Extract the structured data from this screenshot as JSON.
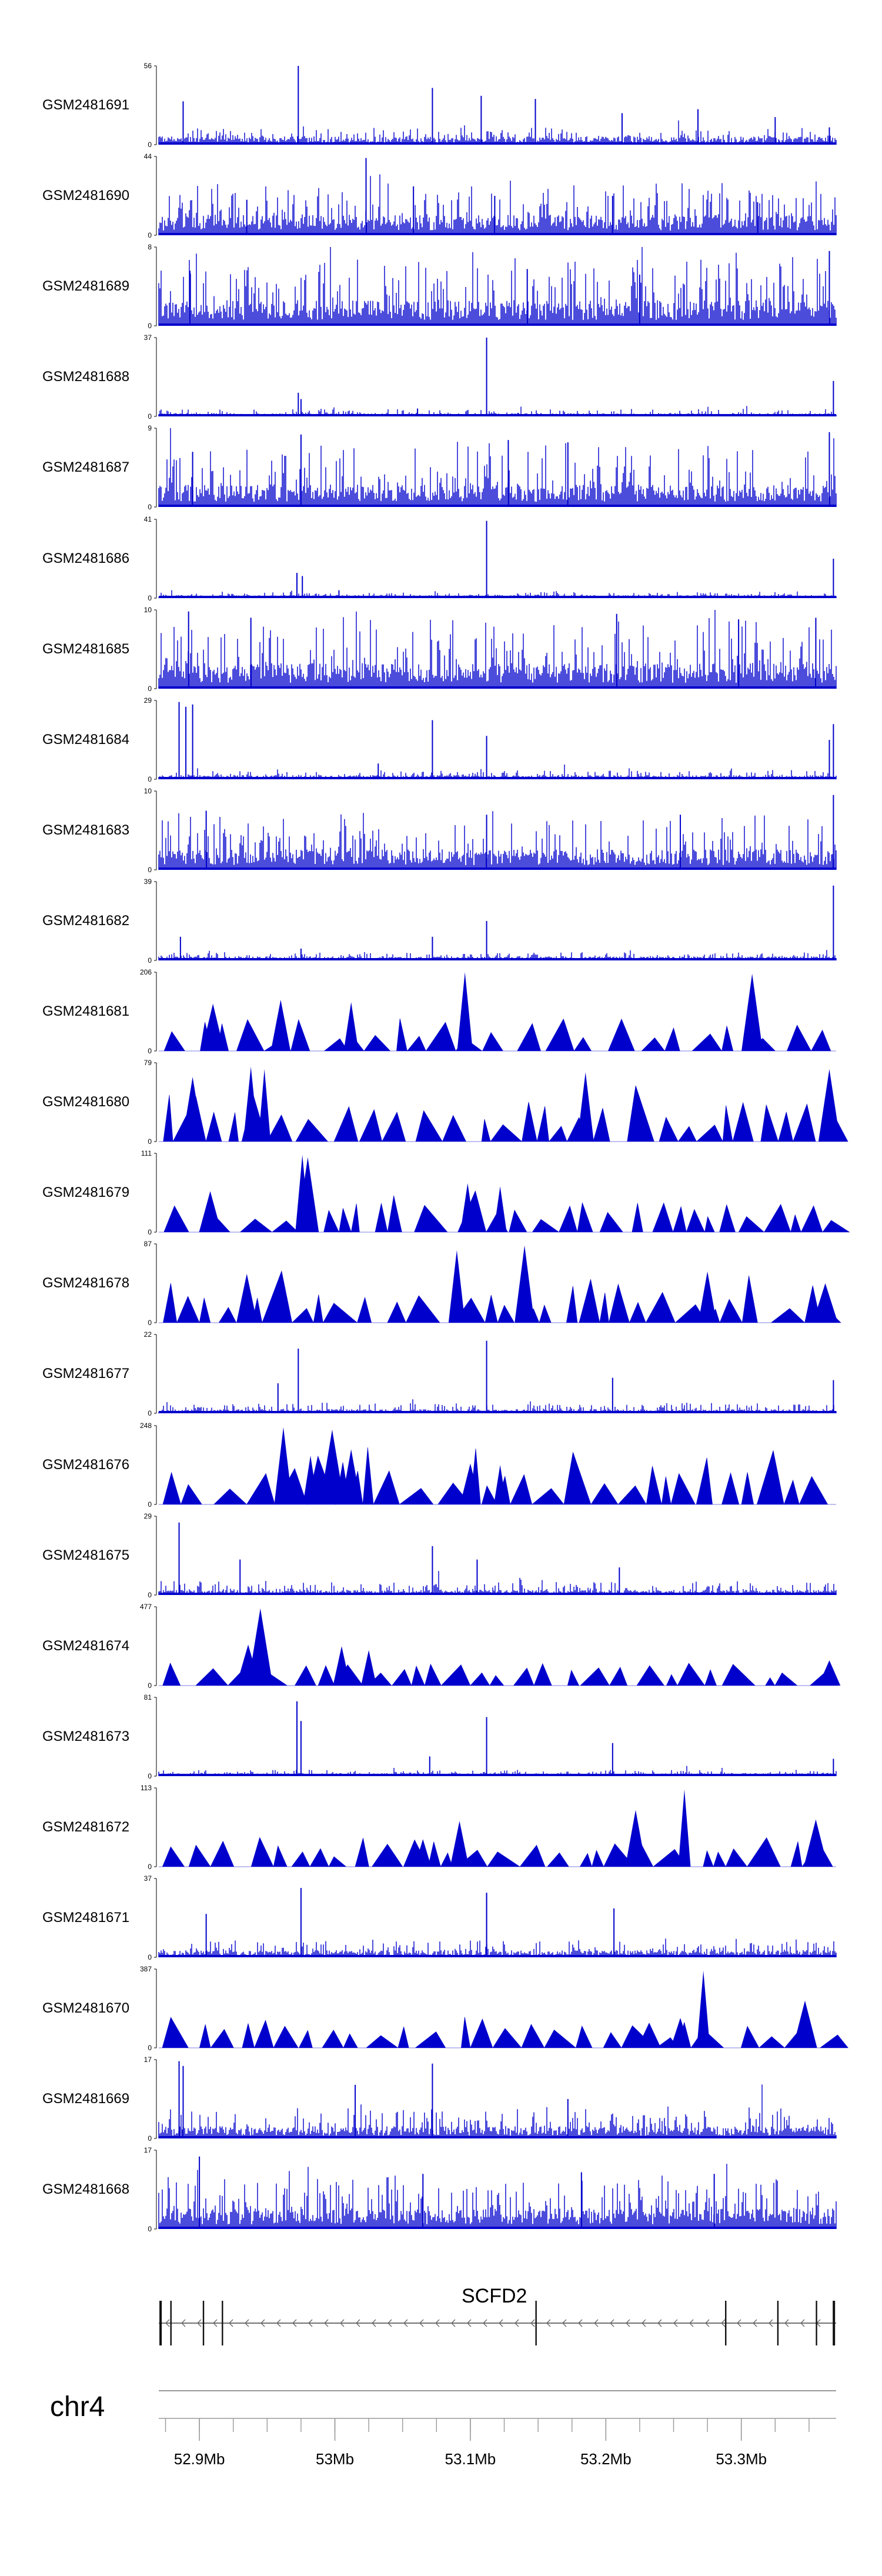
{
  "chart_data": {
    "type": "area",
    "chromosome": "chr4",
    "region_mb": [
      52.87,
      53.37
    ],
    "x_ticks_mb": [
      52.9,
      53.0,
      53.1,
      53.2,
      53.3
    ],
    "x_tick_labels": [
      "52.9Mb",
      "53Mb",
      "53.1Mb",
      "53.2Mb",
      "53.3Mb"
    ],
    "gene": {
      "name": "SCFD2",
      "strand": "-",
      "start_mb": 52.87,
      "end_mb": 53.37
    },
    "series_color": "#0000cc",
    "tracks": [
      {
        "name": "GSM2481691",
        "ymax": "56",
        "ymin": "0",
        "style": "dense",
        "seed": 11,
        "base": 0.08,
        "noise": 0.12,
        "peaks": [
          [
            52.973,
            1.0
          ],
          [
            53.072,
            0.72
          ],
          [
            53.108,
            0.62
          ],
          [
            53.148,
            0.58
          ],
          [
            52.888,
            0.55
          ],
          [
            53.212,
            0.4
          ],
          [
            53.268,
            0.45
          ],
          [
            53.325,
            0.35
          ],
          [
            53.365,
            0.22
          ]
        ]
      },
      {
        "name": "GSM2481690",
        "ymax": "44",
        "ymin": "0",
        "style": "dense",
        "seed": 12,
        "base": 0.2,
        "noise": 0.45,
        "peaks": [
          [
            53.023,
            0.98
          ],
          [
            53.058,
            0.62
          ],
          [
            53.118,
            0.5
          ],
          [
            52.935,
            0.45
          ],
          [
            53.205,
            0.5
          ],
          [
            53.312,
            0.42
          ]
        ]
      },
      {
        "name": "GSM2481689",
        "ymax": "8",
        "ymin": "0",
        "style": "dense",
        "seed": 13,
        "base": 0.25,
        "noise": 0.65,
        "peaks": [
          [
            53.365,
            0.95
          ],
          [
            52.893,
            0.7
          ],
          [
            53.142,
            0.72
          ],
          [
            53.225,
            0.65
          ]
        ]
      },
      {
        "name": "GSM2481688",
        "ymax": "37",
        "ymin": "0",
        "style": "dense",
        "seed": 14,
        "base": 0.03,
        "noise": 0.06,
        "peaks": [
          [
            53.112,
            1.0
          ],
          [
            52.973,
            0.3
          ],
          [
            52.975,
            0.22
          ],
          [
            53.368,
            0.45
          ],
          [
            53.061,
            0.1
          ]
        ]
      },
      {
        "name": "GSM2481687",
        "ymax": "9",
        "ymin": "0",
        "style": "dense",
        "seed": 15,
        "base": 0.22,
        "noise": 0.6,
        "peaks": [
          [
            52.975,
            0.92
          ],
          [
            53.128,
            0.85
          ],
          [
            53.172,
            0.82
          ],
          [
            53.365,
            0.95
          ],
          [
            52.895,
            0.7
          ]
        ]
      },
      {
        "name": "GSM2481686",
        "ymax": "41",
        "ymin": "0",
        "style": "dense",
        "seed": 16,
        "base": 0.03,
        "noise": 0.05,
        "peaks": [
          [
            53.112,
            0.98
          ],
          [
            52.972,
            0.32
          ],
          [
            52.976,
            0.28
          ],
          [
            53.368,
            0.5
          ],
          [
            53.003,
            0.1
          ]
        ]
      },
      {
        "name": "GSM2481685",
        "ymax": "10",
        "ymin": "0",
        "style": "dense",
        "seed": 17,
        "base": 0.25,
        "noise": 0.6,
        "peaks": [
          [
            52.892,
            0.98
          ],
          [
            52.938,
            0.9
          ],
          [
            53.208,
            0.95
          ],
          [
            53.298,
            0.88
          ],
          [
            53.355,
            0.9
          ]
        ]
      },
      {
        "name": "GSM2481684",
        "ymax": "29",
        "ymin": "0",
        "style": "dense",
        "seed": 18,
        "base": 0.04,
        "noise": 0.07,
        "peaks": [
          [
            52.885,
            0.98
          ],
          [
            52.89,
            0.92
          ],
          [
            52.895,
            0.95
          ],
          [
            53.072,
            0.75
          ],
          [
            53.112,
            0.55
          ],
          [
            53.032,
            0.2
          ],
          [
            53.368,
            0.7
          ],
          [
            53.365,
            0.5
          ]
        ]
      },
      {
        "name": "GSM2481683",
        "ymax": "10",
        "ymin": "0",
        "style": "dense",
        "seed": 19,
        "base": 0.2,
        "noise": 0.5,
        "peaks": [
          [
            53.368,
            0.95
          ],
          [
            52.905,
            0.75
          ],
          [
            53.112,
            0.7
          ],
          [
            53.255,
            0.7
          ]
        ]
      },
      {
        "name": "GSM2481682",
        "ymax": "39",
        "ymin": "0",
        "style": "dense",
        "seed": 20,
        "base": 0.04,
        "noise": 0.06,
        "peaks": [
          [
            53.368,
            0.95
          ],
          [
            53.072,
            0.3
          ],
          [
            53.112,
            0.5
          ],
          [
            52.886,
            0.3
          ],
          [
            52.975,
            0.15
          ]
        ]
      },
      {
        "name": "GSM2481681",
        "ymax": "206",
        "ymin": "0",
        "style": "sparse",
        "seed": 21,
        "base": 0.32,
        "noise": 0.05,
        "peaks": [
          [
            53.096,
            1.0
          ],
          [
            53.308,
            0.98
          ],
          [
            52.96,
            0.65
          ],
          [
            53.012,
            0.62
          ],
          [
            52.91,
            0.6
          ]
        ]
      },
      {
        "name": "GSM2481680",
        "ymax": "79",
        "ymin": "0",
        "style": "sparse",
        "seed": 22,
        "base": 0.48,
        "noise": 0.35,
        "peaks": [
          [
            52.938,
            0.95
          ],
          [
            52.948,
            0.92
          ],
          [
            53.365,
            0.92
          ],
          [
            53.185,
            0.88
          ],
          [
            52.895,
            0.82
          ]
        ]
      },
      {
        "name": "GSM2481679",
        "ymax": "111",
        "ymin": "0",
        "style": "sparse",
        "seed": 23,
        "base": 0.3,
        "noise": 0.25,
        "peaks": [
          [
            52.976,
            0.98
          ],
          [
            52.98,
            0.95
          ],
          [
            53.098,
            0.62
          ],
          [
            53.122,
            0.58
          ],
          [
            52.908,
            0.52
          ]
        ]
      },
      {
        "name": "GSM2481678",
        "ymax": "87",
        "ymin": "0",
        "style": "sparse",
        "seed": 24,
        "base": 0.3,
        "noise": 0.28,
        "peaks": [
          [
            53.14,
            0.98
          ],
          [
            53.09,
            0.92
          ],
          [
            53.275,
            0.65
          ],
          [
            52.935,
            0.62
          ],
          [
            53.362,
            0.5
          ]
        ]
      },
      {
        "name": "GSM2481677",
        "ymax": "22",
        "ymin": "0",
        "style": "dense",
        "seed": 25,
        "base": 0.04,
        "noise": 0.09,
        "peaks": [
          [
            52.973,
            0.82
          ],
          [
            53.112,
            0.92
          ],
          [
            52.958,
            0.38
          ],
          [
            53.205,
            0.45
          ],
          [
            53.368,
            0.42
          ]
        ]
      },
      {
        "name": "GSM2481676",
        "ymax": "248",
        "ymin": "0",
        "style": "sparse",
        "seed": 26,
        "base": 0.48,
        "noise": 0.15,
        "peaks": [
          [
            52.962,
            0.98
          ],
          [
            52.998,
            0.95
          ],
          [
            52.982,
            0.62
          ],
          [
            53.012,
            0.7
          ],
          [
            53.1,
            0.52
          ],
          [
            53.122,
            0.5
          ]
        ]
      },
      {
        "name": "GSM2481675",
        "ymax": "29",
        "ymin": "0",
        "style": "dense",
        "seed": 27,
        "base": 0.05,
        "noise": 0.12,
        "peaks": [
          [
            52.885,
            0.92
          ],
          [
            52.93,
            0.45
          ],
          [
            53.072,
            0.62
          ],
          [
            53.105,
            0.45
          ],
          [
            53.21,
            0.35
          ]
        ]
      },
      {
        "name": "GSM2481674",
        "ymax": "477",
        "ymin": "0",
        "style": "sparse",
        "seed": 28,
        "base": 0.22,
        "noise": 0.12,
        "peaks": [
          [
            52.945,
            0.98
          ],
          [
            52.936,
            0.52
          ],
          [
            53.005,
            0.5
          ],
          [
            53.025,
            0.45
          ],
          [
            53.365,
            0.32
          ]
        ]
      },
      {
        "name": "GSM2481673",
        "ymax": "81",
        "ymin": "0",
        "style": "dense",
        "seed": 29,
        "base": 0.03,
        "noise": 0.05,
        "peaks": [
          [
            52.972,
            0.95
          ],
          [
            52.975,
            0.7
          ],
          [
            53.112,
            0.75
          ],
          [
            53.07,
            0.25
          ],
          [
            53.205,
            0.42
          ],
          [
            53.368,
            0.22
          ]
        ]
      },
      {
        "name": "GSM2481672",
        "ymax": "113",
        "ymin": "0",
        "style": "sparse",
        "seed": 30,
        "base": 0.3,
        "noise": 0.12,
        "peaks": [
          [
            53.258,
            0.98
          ],
          [
            53.222,
            0.72
          ],
          [
            53.355,
            0.6
          ],
          [
            53.092,
            0.58
          ],
          [
            53.065,
            0.35
          ]
        ]
      },
      {
        "name": "GSM2481671",
        "ymax": "37",
        "ymin": "0",
        "style": "dense",
        "seed": 31,
        "base": 0.07,
        "noise": 0.14,
        "peaks": [
          [
            52.975,
            0.88
          ],
          [
            53.112,
            0.82
          ],
          [
            53.112,
            0.8
          ],
          [
            53.206,
            0.62
          ],
          [
            52.905,
            0.55
          ]
        ]
      },
      {
        "name": "GSM2481670",
        "ymax": "387",
        "ymin": "0",
        "style": "sparse",
        "seed": 32,
        "base": 0.3,
        "noise": 0.08,
        "peaks": [
          [
            53.272,
            0.98
          ],
          [
            53.347,
            0.6
          ],
          [
            53.255,
            0.38
          ],
          [
            53.232,
            0.32
          ]
        ]
      },
      {
        "name": "GSM2481669",
        "ymax": "17",
        "ymin": "0",
        "style": "dense",
        "seed": 33,
        "base": 0.12,
        "noise": 0.25,
        "peaks": [
          [
            52.885,
            0.98
          ],
          [
            52.888,
            0.92
          ],
          [
            53.072,
            0.95
          ],
          [
            53.015,
            0.68
          ],
          [
            53.172,
            0.5
          ]
        ]
      },
      {
        "name": "GSM2481668",
        "ymax": "17",
        "ymin": "0",
        "style": "dense",
        "seed": 34,
        "base": 0.2,
        "noise": 0.45,
        "peaks": [
          [
            52.9,
            0.92
          ],
          [
            53.065,
            0.7
          ],
          [
            53.182,
            0.72
          ],
          [
            53.28,
            0.7
          ]
        ]
      }
    ]
  }
}
